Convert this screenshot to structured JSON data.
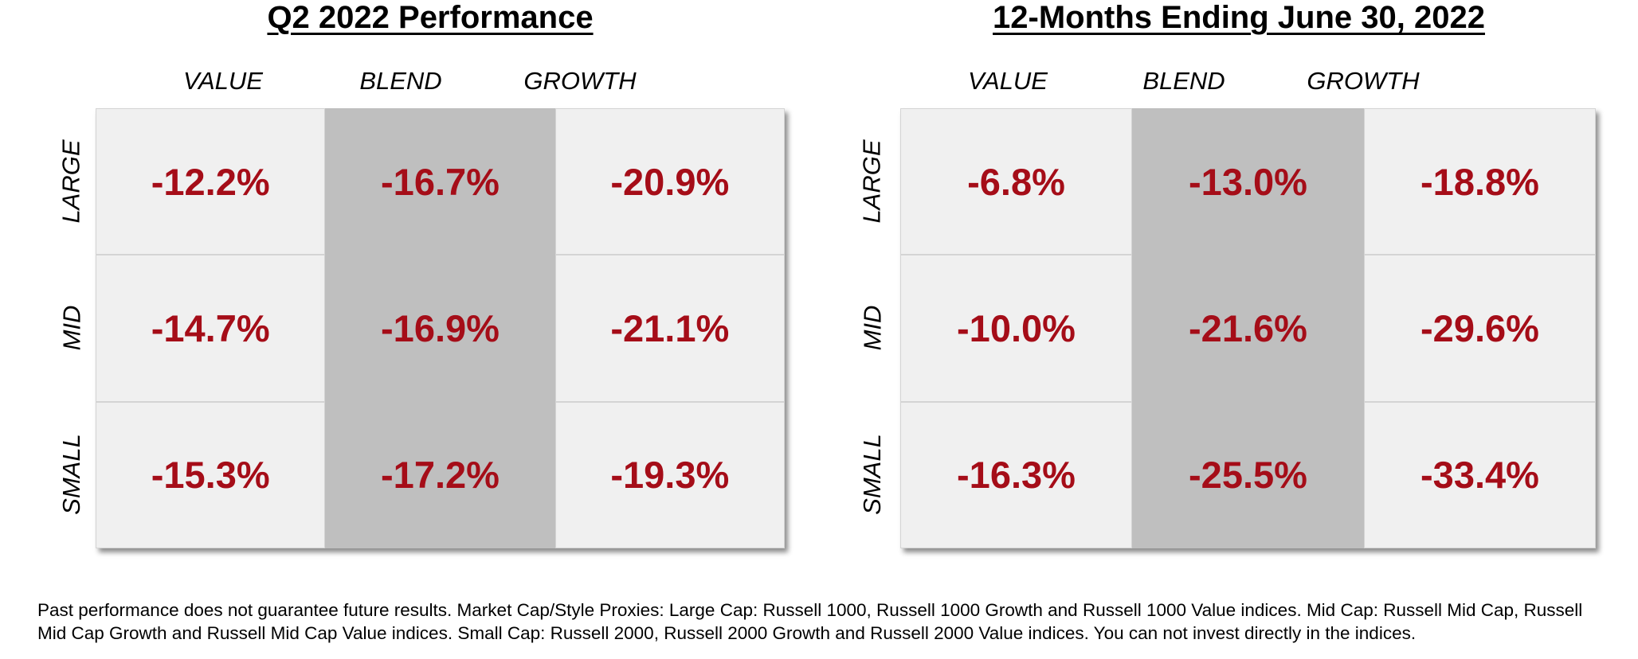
{
  "chart_data": [
    {
      "type": "table",
      "title": "Q2 2022 Performance",
      "columns": [
        "VALUE",
        "BLEND",
        "GROWTH"
      ],
      "rows": [
        "LARGE",
        "MID",
        "SMALL"
      ],
      "values": [
        [
          "-12.2%",
          "-16.7%",
          "-20.9%"
        ],
        [
          "-14.7%",
          "-16.9%",
          "-21.1%"
        ],
        [
          "-15.3%",
          "-17.2%",
          "-19.3%"
        ]
      ]
    },
    {
      "type": "table",
      "title": "12-Months Ending June 30, 2022",
      "columns": [
        "VALUE",
        "BLEND",
        "GROWTH"
      ],
      "rows": [
        "LARGE",
        "MID",
        "SMALL"
      ],
      "values": [
        [
          "-6.8%",
          "-13.0%",
          "-18.8%"
        ],
        [
          "-10.0%",
          "-21.6%",
          "-29.6%"
        ],
        [
          "-16.3%",
          "-25.5%",
          "-33.4%"
        ]
      ]
    }
  ],
  "colors": {
    "value_text": "#a50d18",
    "cell_light": "#f0f0f0",
    "cell_highlight": "#bfbfbf"
  },
  "footnote": "Past performance does not guarantee future results. Market Cap/Style Proxies: Large Cap:  Russell 1000, Russell 1000 Growth and Russell 1000 Value  indices. Mid Cap:  Russell Mid Cap, Russell Mid Cap Growth and Russell Mid Cap Value indices. Small Cap: Russell 2000, Russell 2000 Growth and Russell 2000 Value indices. You can not invest directly in the indices."
}
